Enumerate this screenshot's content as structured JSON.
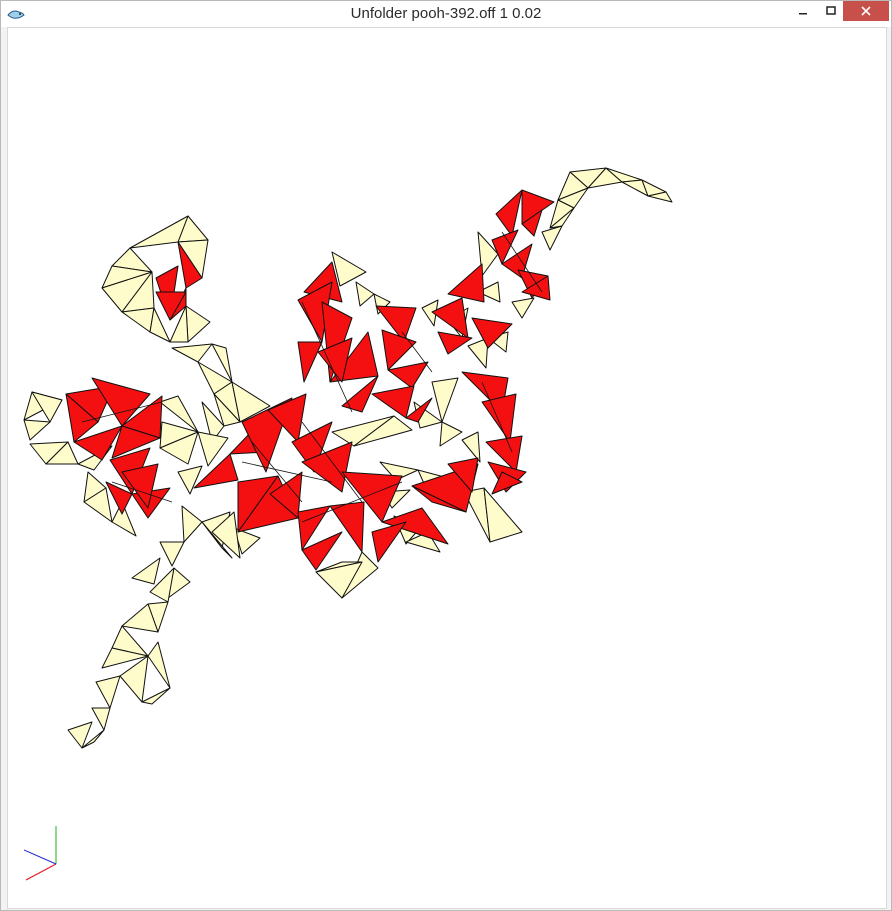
{
  "window": {
    "title": "Unfolder pooh-392.off 1 0.02",
    "controls": {
      "minimize_icon": "minimize-icon",
      "maximize_icon": "maximize-icon",
      "close_icon": "close-icon"
    }
  },
  "colors": {
    "face_normal": "#fffccc",
    "face_overlap": "#f41010",
    "edge": "#111111",
    "axis_x": "#e8141c",
    "axis_y": "#1db31d",
    "axis_z": "#1e2bd8"
  },
  "viewport": {
    "description_icon": "unfolded-mesh-viewport"
  }
}
